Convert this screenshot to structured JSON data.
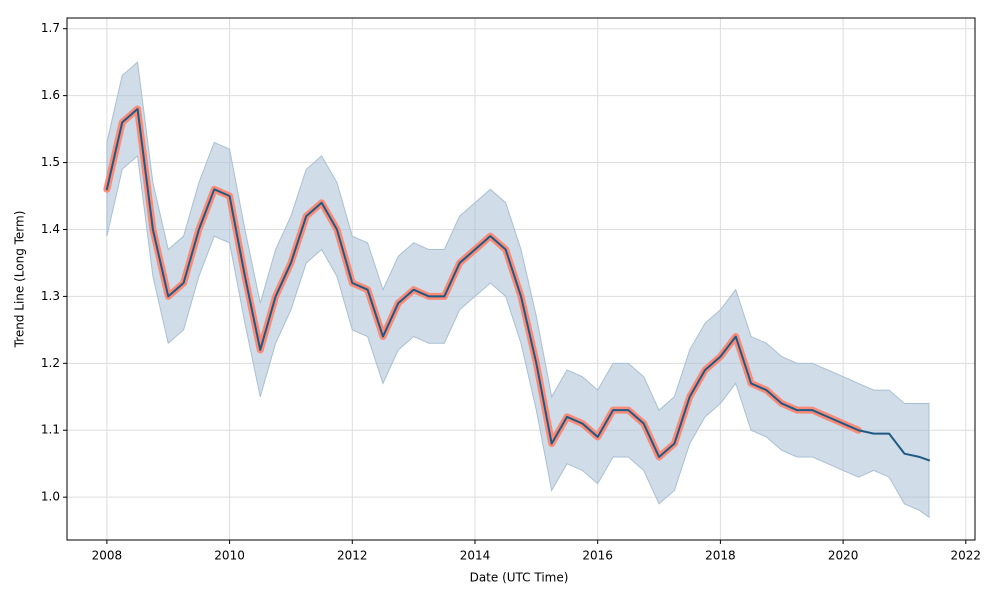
{
  "chart_data": {
    "type": "line",
    "xlabel": "Date (UTC Time)",
    "ylabel": "Trend Line (Long Term)",
    "x": [
      2008,
      2008.25,
      2008.5,
      2008.75,
      2009,
      2009.25,
      2009.5,
      2009.75,
      2010,
      2010.25,
      2010.5,
      2010.75,
      2011,
      2011.25,
      2011.5,
      2011.75,
      2012,
      2012.25,
      2012.5,
      2012.75,
      2013,
      2013.25,
      2013.5,
      2013.75,
      2014,
      2014.25,
      2014.5,
      2014.75,
      2015,
      2015.25,
      2015.5,
      2015.75,
      2016,
      2016.25,
      2016.5,
      2016.75,
      2017,
      2017.25,
      2017.5,
      2017.75,
      2018,
      2018.25,
      2018.5,
      2018.75,
      2019,
      2019.25,
      2019.5,
      2019.75,
      2020,
      2020.25,
      2020.5,
      2020.75,
      2021,
      2021.25,
      2021.4
    ],
    "series": [
      {
        "color": "#fa8b78",
        "values": [
          1.46,
          1.56,
          1.58,
          1.4,
          1.3,
          1.32,
          1.4,
          1.46,
          1.45,
          1.33,
          1.22,
          1.3,
          1.35,
          1.42,
          1.44,
          1.4,
          1.32,
          1.31,
          1.24,
          1.29,
          1.31,
          1.3,
          1.3,
          1.35,
          1.37,
          1.39,
          1.37,
          1.3,
          1.2,
          1.08,
          1.12,
          1.11,
          1.09,
          1.13,
          1.13,
          1.11,
          1.06,
          1.08,
          1.15,
          1.19,
          1.21,
          1.24,
          1.17,
          1.16,
          1.14,
          1.13,
          1.13,
          1.12,
          1.11,
          1.1,
          null,
          null,
          null,
          null,
          null
        ]
      },
      {
        "color": "#1f5a85",
        "values": [
          1.46,
          1.56,
          1.58,
          1.4,
          1.3,
          1.32,
          1.4,
          1.46,
          1.45,
          1.33,
          1.22,
          1.3,
          1.35,
          1.42,
          1.44,
          1.4,
          1.32,
          1.31,
          1.24,
          1.29,
          1.31,
          1.3,
          1.3,
          1.35,
          1.37,
          1.39,
          1.37,
          1.3,
          1.2,
          1.08,
          1.12,
          1.11,
          1.09,
          1.13,
          1.13,
          1.11,
          1.06,
          1.08,
          1.15,
          1.19,
          1.21,
          1.24,
          1.17,
          1.16,
          1.14,
          1.13,
          1.13,
          1.12,
          1.11,
          1.1,
          1.095,
          1.095,
          1.065,
          1.06,
          1.055
        ]
      }
    ],
    "band": {
      "color": "#a9c0d3",
      "upper": [
        1.53,
        1.63,
        1.65,
        1.47,
        1.37,
        1.39,
        1.47,
        1.53,
        1.52,
        1.4,
        1.29,
        1.37,
        1.42,
        1.49,
        1.51,
        1.47,
        1.39,
        1.38,
        1.31,
        1.36,
        1.38,
        1.37,
        1.37,
        1.42,
        1.44,
        1.46,
        1.44,
        1.37,
        1.27,
        1.15,
        1.19,
        1.18,
        1.16,
        1.2,
        1.2,
        1.18,
        1.13,
        1.15,
        1.22,
        1.26,
        1.28,
        1.31,
        1.24,
        1.23,
        1.21,
        1.2,
        1.2,
        1.19,
        1.18,
        1.17,
        1.16,
        1.16,
        1.14,
        1.14,
        1.14
      ],
      "lower": [
        1.39,
        1.49,
        1.51,
        1.33,
        1.23,
        1.25,
        1.33,
        1.39,
        1.38,
        1.26,
        1.15,
        1.23,
        1.28,
        1.35,
        1.37,
        1.33,
        1.25,
        1.24,
        1.17,
        1.22,
        1.24,
        1.23,
        1.23,
        1.28,
        1.3,
        1.32,
        1.3,
        1.23,
        1.13,
        1.01,
        1.05,
        1.04,
        1.02,
        1.06,
        1.06,
        1.04,
        0.99,
        1.01,
        1.08,
        1.12,
        1.14,
        1.17,
        1.1,
        1.09,
        1.07,
        1.06,
        1.06,
        1.05,
        1.04,
        1.03,
        1.04,
        1.03,
        0.99,
        0.98,
        0.97
      ]
    },
    "xlim": [
      2007.35,
      2022.15
    ],
    "xticks": [
      2008,
      2010,
      2012,
      2014,
      2016,
      2018,
      2020,
      2022
    ],
    "ylim": [
      0.936,
      1.716
    ],
    "yticks": [
      {
        "value": 1,
        "label": "1.0"
      },
      1.1,
      1.2,
      1.3,
      1.4,
      1.5,
      1.6,
      1.7
    ],
    "grid": true
  }
}
